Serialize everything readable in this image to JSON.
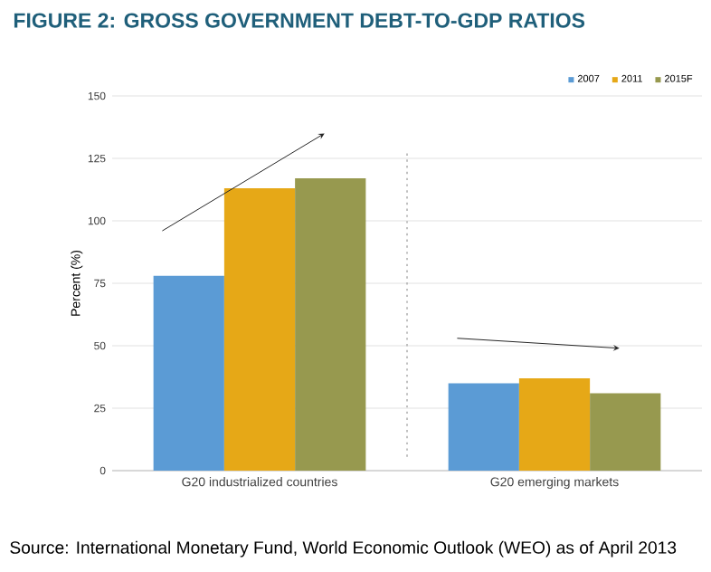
{
  "chart_data": {
    "type": "bar",
    "title": "FIGURE 2: GROSS GOVERNMENT DEBT-TO-GDP RATIOS",
    "ylabel": "Percent (%)",
    "categories": [
      "G20 industrialized countries",
      "G20 emerging markets"
    ],
    "series": [
      {
        "name": "2007",
        "color": "#5b9bd5",
        "values": [
          78,
          35
        ]
      },
      {
        "name": "2011",
        "color": "#e6a817",
        "values": [
          113,
          37
        ]
      },
      {
        "name": "2015F",
        "color": "#97994f",
        "values": [
          117,
          31
        ]
      }
    ],
    "ylim": [
      0,
      150
    ],
    "yticks": [
      0,
      25,
      50,
      75,
      100,
      125,
      150
    ],
    "grid": "y",
    "legend": "top right",
    "annotations": [
      "Source: International Monetary Fund, World Economic Outlook (WEO)  as of April 2013"
    ]
  }
}
